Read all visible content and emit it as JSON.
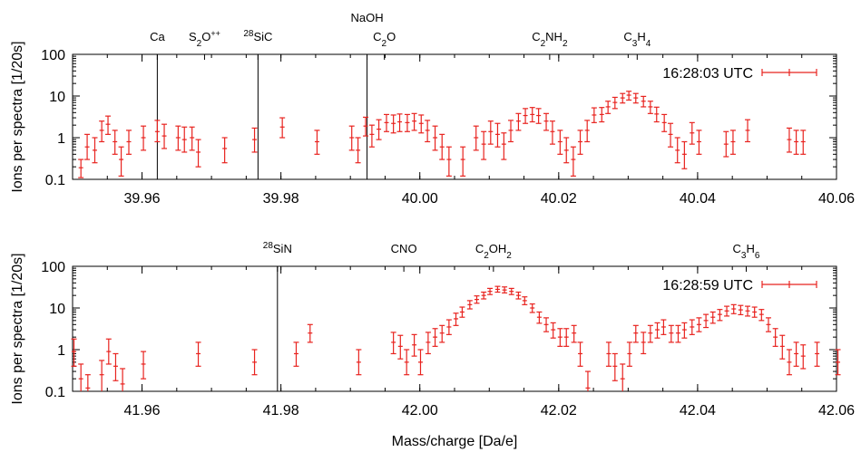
{
  "figure": {
    "shared_xlabel": "Mass/charge [Da/e]"
  },
  "chart_data": [
    {
      "type": "scatter",
      "panel": "top",
      "ylabel": "Ions per spectra [1/20s]",
      "xlim": [
        39.95,
        40.06
      ],
      "ylim": [
        0.1,
        100
      ],
      "y_scale": "log",
      "x_ticks": [
        "39.96",
        "39.98",
        "40.00",
        "40.02",
        "40.04",
        "40.06"
      ],
      "y_ticks": [
        "0.1",
        "1",
        "10",
        "100"
      ],
      "legend_position": "top-right",
      "series": [
        {
          "name": "16:28:03 UTC",
          "color": "#e8231f",
          "points": [
            [
              39.9512,
              0.19,
              0.11,
              0.3
            ],
            [
              39.9521,
              0.6,
              0.3,
              1.2
            ],
            [
              39.9532,
              0.5,
              0.25,
              1.0
            ],
            [
              39.9542,
              1.5,
              0.8,
              2.5
            ],
            [
              39.9551,
              2.1,
              1.2,
              3.3
            ],
            [
              39.9561,
              0.8,
              0.4,
              1.5
            ],
            [
              39.957,
              0.3,
              0.12,
              0.6
            ],
            [
              39.9581,
              0.8,
              0.4,
              1.5
            ],
            [
              39.9602,
              1.0,
              0.5,
              1.9
            ],
            [
              39.9622,
              1.4,
              0.8,
              2.6
            ],
            [
              39.9632,
              1.1,
              0.55,
              2.1
            ],
            [
              39.9652,
              1.0,
              0.5,
              1.9
            ],
            [
              39.9661,
              0.9,
              0.45,
              1.8
            ],
            [
              39.9672,
              1.0,
              0.5,
              1.8
            ],
            [
              39.9681,
              0.45,
              0.2,
              0.9
            ],
            [
              39.9719,
              0.55,
              0.25,
              1.0
            ],
            [
              39.9762,
              0.9,
              0.45,
              1.7
            ],
            [
              39.9802,
              1.8,
              1.0,
              3.0
            ],
            [
              39.9852,
              0.8,
              0.4,
              1.5
            ],
            [
              39.9902,
              1.0,
              0.5,
              1.9
            ],
            [
              39.9911,
              0.5,
              0.25,
              1.0
            ],
            [
              39.9922,
              1.9,
              1.1,
              3.1
            ],
            [
              39.9931,
              1.2,
              0.6,
              2.0
            ],
            [
              39.9941,
              1.6,
              0.9,
              2.7
            ],
            [
              39.9952,
              2.3,
              1.4,
              3.6
            ],
            [
              39.9962,
              2.2,
              1.3,
              3.5
            ],
            [
              39.9971,
              2.4,
              1.4,
              3.7
            ],
            [
              39.9982,
              2.3,
              1.4,
              3.6
            ],
            [
              39.9992,
              2.5,
              1.5,
              3.8
            ],
            [
              40.0002,
              2.2,
              1.3,
              3.5
            ],
            [
              40.0011,
              1.5,
              0.8,
              2.6
            ],
            [
              40.0022,
              1.0,
              0.5,
              1.9
            ],
            [
              40.0032,
              0.6,
              0.3,
              1.2
            ],
            [
              40.0042,
              0.3,
              0.12,
              0.6
            ],
            [
              40.0062,
              0.3,
              0.12,
              0.6
            ],
            [
              40.0081,
              1.0,
              0.5,
              1.9
            ],
            [
              40.0092,
              0.7,
              0.3,
              1.4
            ],
            [
              40.0102,
              1.4,
              0.7,
              2.5
            ],
            [
              40.0112,
              1.2,
              0.6,
              2.2
            ],
            [
              40.0121,
              0.7,
              0.3,
              1.3
            ],
            [
              40.0131,
              1.5,
              0.8,
              2.6
            ],
            [
              40.0142,
              2.5,
              1.5,
              3.8
            ],
            [
              40.0152,
              3.4,
              2.2,
              5.0
            ],
            [
              40.0162,
              3.6,
              2.4,
              5.3
            ],
            [
              40.0171,
              3.4,
              2.2,
              5.0
            ],
            [
              40.0182,
              2.5,
              1.5,
              3.8
            ],
            [
              40.0191,
              1.4,
              0.7,
              2.5
            ],
            [
              40.0202,
              0.8,
              0.4,
              1.5
            ],
            [
              40.0211,
              0.5,
              0.25,
              1.0
            ],
            [
              40.0221,
              0.3,
              0.12,
              0.6
            ],
            [
              40.0231,
              0.8,
              0.4,
              1.5
            ],
            [
              40.0241,
              1.5,
              0.8,
              2.6
            ],
            [
              40.0251,
              3.5,
              2.3,
              5.2
            ],
            [
              40.0262,
              3.6,
              2.4,
              5.3
            ],
            [
              40.0271,
              5.5,
              3.8,
              7.5
            ],
            [
              40.0281,
              7.0,
              5.0,
              9.3
            ],
            [
              40.0292,
              9.0,
              6.8,
              11.5
            ],
            [
              40.0301,
              10.5,
              8.0,
              13.0
            ],
            [
              40.0311,
              9.0,
              6.8,
              11.5
            ],
            [
              40.0322,
              7.5,
              5.5,
              9.8
            ],
            [
              40.0332,
              5.5,
              3.8,
              7.5
            ],
            [
              40.0341,
              3.7,
              2.4,
              5.4
            ],
            [
              40.0352,
              2.3,
              1.4,
              3.6
            ],
            [
              40.0361,
              1.2,
              0.6,
              2.2
            ],
            [
              40.0371,
              0.5,
              0.25,
              1.0
            ],
            [
              40.0381,
              0.4,
              0.18,
              0.8
            ],
            [
              40.0392,
              1.3,
              0.7,
              2.3
            ],
            [
              40.0402,
              0.8,
              0.4,
              1.5
            ],
            [
              40.0441,
              0.7,
              0.35,
              1.4
            ],
            [
              40.0451,
              0.8,
              0.4,
              1.5
            ],
            [
              40.0472,
              1.5,
              0.8,
              2.7
            ],
            [
              40.0532,
              0.9,
              0.45,
              1.7
            ],
            [
              40.0542,
              0.8,
              0.4,
              1.5
            ],
            [
              40.0552,
              0.8,
              0.4,
              1.5
            ]
          ]
        }
      ],
      "annotations": [
        {
          "label": "Ca",
          "x": 39.9622,
          "line": true
        },
        {
          "label": "S2O++",
          "x": 39.969,
          "line": false
        },
        {
          "label": "28SiC",
          "x": 39.9767,
          "line": true
        },
        {
          "label": "NaOH",
          "x": 39.9924,
          "line": true,
          "upper": true
        },
        {
          "label": "C2O",
          "x": 39.9949,
          "line": false
        },
        {
          "label": "C2NH2",
          "x": 40.0187,
          "line": false
        },
        {
          "label": "C3H4",
          "x": 40.0313,
          "line": false
        }
      ]
    },
    {
      "type": "scatter",
      "panel": "bottom",
      "xlabel": "Mass/charge [Da/e]",
      "ylabel": "Ions per spectra [1/20s]",
      "xlim": [
        41.95,
        42.06
      ],
      "ylim": [
        0.1,
        100
      ],
      "y_scale": "log",
      "x_ticks": [
        "41.96",
        "41.98",
        "42.00",
        "42.02",
        "42.04",
        "42.06"
      ],
      "y_ticks": [
        "0.1",
        "1",
        "10",
        "100"
      ],
      "legend_position": "top-right",
      "series": [
        {
          "name": "16:28:59 UTC",
          "color": "#e8231f",
          "points": [
            [
              41.9502,
              0.9,
              0.4,
              1.8
            ],
            [
              41.9512,
              0.2,
              0.1,
              0.45
            ],
            [
              41.9522,
              0.12,
              0.1,
              0.25
            ],
            [
              41.9542,
              0.25,
              0.1,
              0.55
            ],
            [
              41.9552,
              0.9,
              0.45,
              1.8
            ],
            [
              41.9562,
              0.4,
              0.18,
              0.8
            ],
            [
              41.9572,
              0.15,
              0.1,
              0.35
            ],
            [
              41.9602,
              0.45,
              0.2,
              0.9
            ],
            [
              41.9681,
              0.8,
              0.4,
              1.5
            ],
            [
              41.9762,
              0.5,
              0.25,
              1.0
            ],
            [
              41.9822,
              0.8,
              0.4,
              1.5
            ],
            [
              41.9842,
              2.5,
              1.5,
              4.0
            ],
            [
              41.9912,
              0.5,
              0.25,
              1.0
            ],
            [
              41.9962,
              1.5,
              0.8,
              2.6
            ],
            [
              41.9972,
              1.2,
              0.6,
              2.2
            ],
            [
              41.9981,
              0.5,
              0.25,
              1.0
            ],
            [
              41.9992,
              1.3,
              0.7,
              2.3
            ],
            [
              42.0001,
              0.5,
              0.25,
              1.0
            ],
            [
              42.0012,
              1.5,
              0.8,
              2.6
            ],
            [
              42.0022,
              2.0,
              1.2,
              3.2
            ],
            [
              42.0032,
              2.5,
              1.5,
              3.8
            ],
            [
              42.0042,
              3.5,
              2.3,
              5.2
            ],
            [
              42.0052,
              5.5,
              3.8,
              7.5
            ],
            [
              42.0061,
              8.0,
              6.0,
              10.5
            ],
            [
              42.0072,
              12.0,
              9.5,
              15.0
            ],
            [
              42.0082,
              16.0,
              13.0,
              19.5
            ],
            [
              42.0092,
              20.0,
              16.5,
              24.0
            ],
            [
              42.0101,
              25.0,
              21.0,
              29.5
            ],
            [
              42.0112,
              28.0,
              24.0,
              33.0
            ],
            [
              42.0122,
              27.0,
              23.0,
              32.0
            ],
            [
              42.0132,
              25.0,
              21.0,
              29.5
            ],
            [
              42.0142,
              20.0,
              16.5,
              24.0
            ],
            [
              42.0151,
              15.0,
              12.0,
              18.5
            ],
            [
              42.0162,
              10.0,
              7.8,
              12.5
            ],
            [
              42.0172,
              6.0,
              4.3,
              8.0
            ],
            [
              42.0182,
              4.0,
              2.7,
              5.8
            ],
            [
              42.0192,
              3.0,
              1.9,
              4.4
            ],
            [
              42.0202,
              2.0,
              1.2,
              3.2
            ],
            [
              42.0211,
              2.0,
              1.2,
              3.2
            ],
            [
              42.0222,
              2.5,
              1.5,
              3.8
            ],
            [
              42.0231,
              0.8,
              0.4,
              1.5
            ],
            [
              42.0242,
              0.12,
              0.1,
              0.3
            ],
            [
              42.0272,
              0.8,
              0.4,
              1.5
            ],
            [
              42.0281,
              0.4,
              0.18,
              0.8
            ],
            [
              42.0292,
              0.2,
              0.1,
              0.45
            ],
            [
              42.0302,
              0.8,
              0.4,
              1.5
            ],
            [
              42.0311,
              2.5,
              1.5,
              3.8
            ],
            [
              42.0322,
              1.5,
              0.8,
              2.6
            ],
            [
              42.0332,
              2.5,
              1.5,
              3.8
            ],
            [
              42.0342,
              3.0,
              1.9,
              4.4
            ],
            [
              42.0351,
              3.5,
              2.3,
              5.2
            ],
            [
              42.0362,
              2.5,
              1.5,
              3.8
            ],
            [
              42.0372,
              2.5,
              1.5,
              3.8
            ],
            [
              42.0381,
              3.0,
              1.9,
              4.4
            ],
            [
              42.0392,
              3.5,
              2.3,
              5.2
            ],
            [
              42.0402,
              4.0,
              2.7,
              5.8
            ],
            [
              42.0412,
              5.0,
              3.4,
              7.0
            ],
            [
              42.0422,
              6.0,
              4.3,
              8.0
            ],
            [
              42.0432,
              7.0,
              5.0,
              9.2
            ],
            [
              42.0442,
              8.5,
              6.4,
              11.0
            ],
            [
              42.0452,
              9.5,
              7.3,
              12.0
            ],
            [
              42.0462,
              9.0,
              6.9,
              11.5
            ],
            [
              42.0472,
              8.5,
              6.4,
              11.0
            ],
            [
              42.0482,
              8.0,
              6.0,
              10.5
            ],
            [
              42.0492,
              7.0,
              5.0,
              9.2
            ],
            [
              42.0502,
              4.0,
              2.7,
              5.8
            ],
            [
              42.0512,
              2.0,
              1.2,
              3.2
            ],
            [
              42.0522,
              1.2,
              0.6,
              2.2
            ],
            [
              42.0532,
              0.5,
              0.25,
              1.0
            ],
            [
              42.0542,
              0.8,
              0.4,
              1.5
            ],
            [
              42.0552,
              0.7,
              0.35,
              1.3
            ],
            [
              42.0572,
              0.8,
              0.4,
              1.5
            ],
            [
              42.0602,
              0.5,
              0.25,
              1.0
            ]
          ]
        }
      ],
      "annotations": [
        {
          "label": "28SiN",
          "x": 41.9795,
          "line": true
        },
        {
          "label": "CNO",
          "x": 41.9977,
          "line": false
        },
        {
          "label": "C2OH2",
          "x": 42.0106,
          "line": false
        },
        {
          "label": "C3H6",
          "x": 42.047,
          "line": false
        }
      ]
    }
  ]
}
